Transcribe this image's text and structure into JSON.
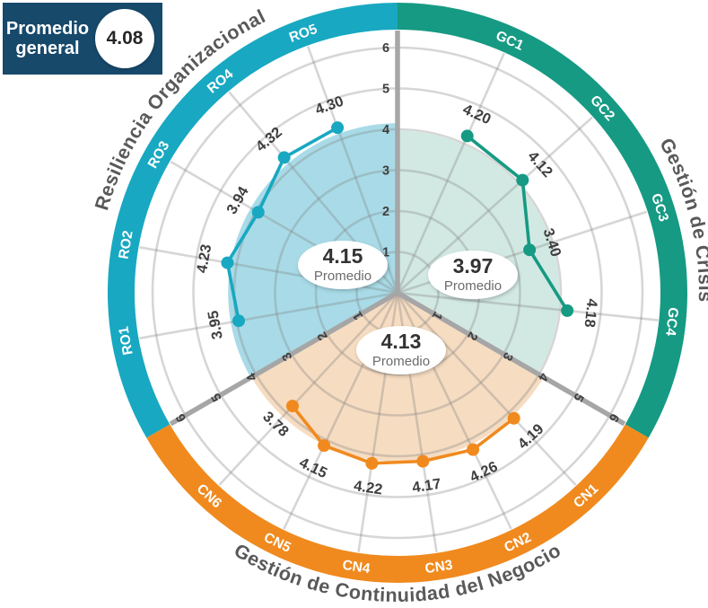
{
  "badge": {
    "title_line1": "Promedio",
    "title_line2": "general",
    "value": "4.08",
    "bg_color": "#17496b"
  },
  "chart_data": {
    "type": "polar-radar",
    "axis": {
      "min": 0,
      "max": 6,
      "ticks": [
        1,
        2,
        3,
        4,
        5,
        6
      ]
    },
    "average_caption": "Promedio",
    "grid": true,
    "colors": {
      "grid_line": "rgba(130,130,130,0.33)",
      "boundary_line": "#a6a6a6",
      "tick_label": "#3e3e3e",
      "value_label": "#3e3e3e",
      "section_title": "#595959",
      "average_value_text": "#333333",
      "average_caption_text": "#6b6b6b"
    },
    "sections": [
      {
        "id": "GC",
        "title": "Gestión de Crisis",
        "color": "#169a83",
        "fill_color": "#d2e9e3",
        "start_angle": 0,
        "end_angle": 120,
        "title_center_angle": 76,
        "average": "3.97",
        "avg_ellipse_offset": {
          "x": 84,
          "y": -20
        },
        "items": [
          {
            "label": "GC1",
            "value": 4.2
          },
          {
            "label": "GC2",
            "value": 4.12
          },
          {
            "label": "GC3",
            "value": 3.4
          },
          {
            "label": "GC4",
            "value": 4.18
          }
        ]
      },
      {
        "id": "CN",
        "title": "Gestión de Continuidad del Negocio",
        "color": "#f08a1e",
        "fill_color": "#f6dcc1",
        "start_angle": 120,
        "end_angle": 240,
        "title_center_angle": 180,
        "average": "4.13",
        "avg_ellipse_offset": {
          "x": 4,
          "y": 64
        },
        "items": [
          {
            "label": "CN1",
            "value": 4.19
          },
          {
            "label": "CN2",
            "value": 4.26
          },
          {
            "label": "CN3",
            "value": 4.17
          },
          {
            "label": "CN4",
            "value": 4.22
          },
          {
            "label": "CN5",
            "value": 4.15
          },
          {
            "label": "CN6",
            "value": 3.78
          }
        ]
      },
      {
        "id": "RO",
        "title": "Resiliencia Organizacional",
        "color": "#18a8c2",
        "fill_color": "#a8dbe7",
        "start_angle": 240,
        "end_angle": 360,
        "title_center_angle": 310,
        "average": "4.15",
        "avg_ellipse_offset": {
          "x": -61,
          "y": -31
        },
        "items": [
          {
            "label": "RO1",
            "value": 3.95
          },
          {
            "label": "RO2",
            "value": 4.23
          },
          {
            "label": "RO3",
            "value": 3.94
          },
          {
            "label": "RO4",
            "value": 4.32
          },
          {
            "label": "RO5",
            "value": 4.3
          }
        ]
      }
    ]
  }
}
